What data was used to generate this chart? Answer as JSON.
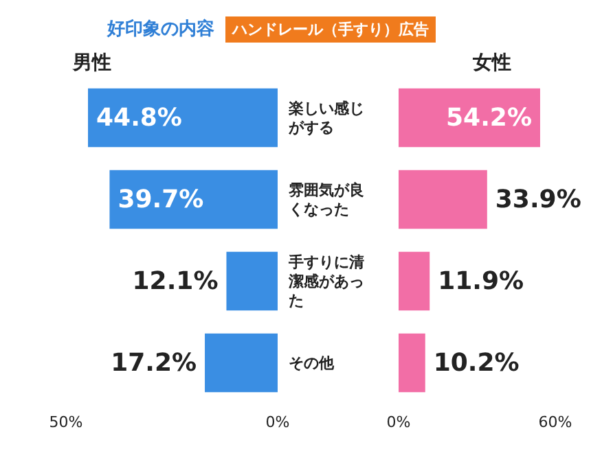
{
  "chart_data": [
    {
      "type": "bar",
      "orientation": "horizontal",
      "title": "男性",
      "annotations": [
        "好印象の内容",
        "ハンドレール（手すり）広告"
      ],
      "categories": [
        "楽しい感じがする",
        "雰囲気が良くなった",
        "手すりに清潔感があった",
        "その他"
      ],
      "values": [
        44.8,
        39.7,
        12.1,
        17.2
      ],
      "value_labels": [
        "44.8%",
        "39.7%",
        "12.1%",
        "17.2%"
      ],
      "color": "#3a8ee3",
      "xlim": [
        50,
        0
      ],
      "xticks": [
        {
          "value": 50,
          "label": "50%"
        },
        {
          "value": 0,
          "label": "0%"
        }
      ],
      "grid": false
    },
    {
      "type": "bar",
      "orientation": "horizontal",
      "title": "女性",
      "categories": [
        "楽しい感じがする",
        "雰囲気が良くなった",
        "手すりに清潔感があった",
        "その他"
      ],
      "values": [
        54.2,
        33.9,
        11.9,
        10.2
      ],
      "value_labels": [
        "54.2%",
        "33.9%",
        "11.9%",
        "10.2%"
      ],
      "color": "#f26ea6",
      "xlim": [
        0,
        60
      ],
      "xticks": [
        {
          "value": 0,
          "label": "0%"
        },
        {
          "value": 60,
          "label": "60%"
        }
      ],
      "grid": false,
      "tick_labels": "x"
    }
  ]
}
